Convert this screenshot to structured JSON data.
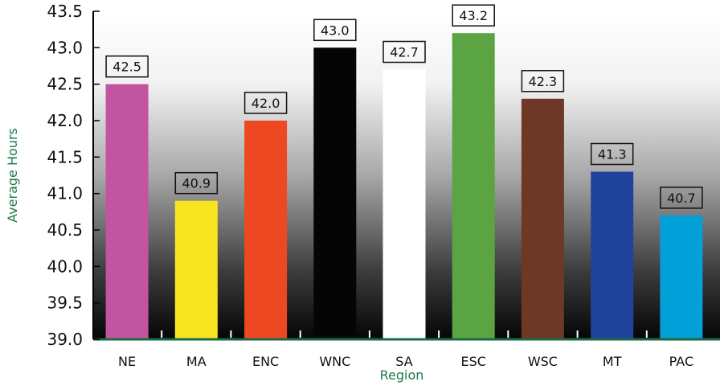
{
  "chart_data": {
    "type": "bar",
    "title": "",
    "xlabel": "Region",
    "ylabel": "Average Hours",
    "categories": [
      "NE",
      "MA",
      "ENC",
      "WNC",
      "SA",
      "ESC",
      "WSC",
      "MT",
      "PAC"
    ],
    "values": [
      42.5,
      40.9,
      42.0,
      43.0,
      42.7,
      43.2,
      42.3,
      41.3,
      40.7
    ],
    "data_labels": [
      "42.5",
      "40.9",
      "42.0",
      "43.0",
      "42.7",
      "43.2",
      "42.3",
      "41.3",
      "40.7"
    ],
    "bar_colors": [
      "#c2559f",
      "#f9e51f",
      "#ee4823",
      "#050505",
      "#ffffff",
      "#5aa444",
      "#6d3826",
      "#20449c",
      "#02a0d8"
    ],
    "ylim": [
      39.0,
      43.5
    ],
    "yticks": [
      "39.0",
      "39.5",
      "40.0",
      "40.5",
      "41.0",
      "41.5",
      "42.0",
      "42.5",
      "43.0",
      "43.5"
    ],
    "grid": false,
    "legend": "none",
    "background": "gradient white-to-black",
    "axis_title_color": "#1a7a4a",
    "baseline_color": "#1a6b45"
  }
}
